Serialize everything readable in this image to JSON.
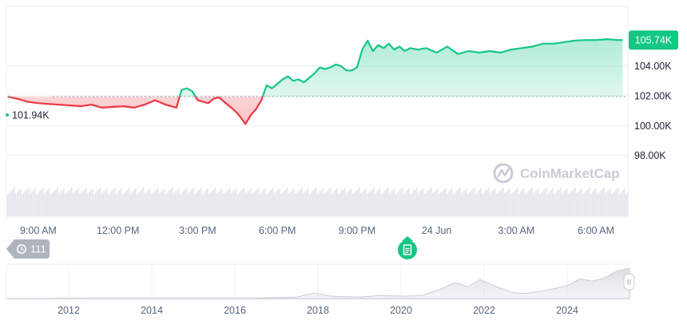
{
  "chart_data": [
    {
      "type": "line",
      "baseline": 101.94,
      "baseline_label": "101.94K",
      "current_label": "105.74K",
      "y_tick_labels": [
        "104.00K",
        "102.00K",
        "100.00K",
        "98.00K"
      ],
      "y_ticks": [
        104.0,
        102.0,
        100.0,
        98.0
      ],
      "ylim": [
        96.0,
        108.0
      ],
      "x_tick_labels": [
        "9:00 AM",
        "12:00 PM",
        "3:00 PM",
        "6:00 PM",
        "9:00 PM",
        "24 Jun",
        "3:00 AM",
        "6:00 AM"
      ],
      "x_ticks": [
        9,
        12,
        15,
        18,
        21,
        24,
        27,
        30
      ],
      "xlim": [
        7.8,
        31.2
      ],
      "colors": {
        "up": "#16c784",
        "down": "#ea3943",
        "badge": "#16c784"
      },
      "watermark": "CoinMarketCap",
      "series": [
        {
          "x": [
            7.85,
            8.2,
            8.6,
            9.0,
            9.4,
            9.8,
            10.2,
            10.6,
            11.0,
            11.4,
            11.8,
            12.2,
            12.6,
            13.0,
            13.4,
            13.8,
            14.2,
            14.4,
            14.6,
            14.8,
            15.0,
            15.2,
            15.4,
            15.6,
            15.8,
            16.0,
            16.2,
            16.4,
            16.6,
            16.8,
            17.0,
            17.2,
            17.4,
            17.6,
            17.8,
            18.0,
            18.2,
            18.4,
            18.6,
            18.8,
            19.0,
            19.2,
            19.4,
            19.6,
            19.8,
            20.0,
            20.2,
            20.4,
            20.6,
            20.8,
            21.0,
            21.2,
            21.4,
            21.6,
            21.8,
            22.0,
            22.2,
            22.4,
            22.6,
            22.8,
            23.0,
            23.3,
            23.6,
            24.0,
            24.4,
            24.8,
            25.2,
            25.6,
            26.0,
            26.4,
            26.8,
            27.2,
            27.6,
            28.0,
            28.4,
            28.8,
            29.2,
            29.6,
            30.0,
            30.4,
            30.8,
            31.0
          ],
          "values": [
            101.94,
            101.8,
            101.6,
            101.5,
            101.45,
            101.4,
            101.35,
            101.3,
            101.4,
            101.2,
            101.25,
            101.3,
            101.2,
            101.4,
            101.7,
            101.4,
            101.2,
            102.4,
            102.5,
            102.3,
            101.7,
            101.6,
            101.5,
            101.8,
            101.9,
            101.6,
            101.3,
            101.0,
            100.6,
            100.1,
            100.7,
            101.1,
            101.7,
            102.7,
            102.5,
            102.8,
            103.1,
            103.3,
            103.0,
            103.1,
            102.9,
            103.2,
            103.5,
            103.9,
            103.8,
            103.9,
            104.1,
            104.0,
            103.7,
            103.7,
            103.9,
            105.1,
            105.7,
            105.0,
            105.4,
            105.2,
            105.5,
            105.1,
            105.3,
            105.0,
            105.2,
            105.1,
            105.2,
            104.9,
            105.3,
            104.8,
            105.0,
            104.9,
            105.0,
            104.9,
            105.1,
            105.2,
            105.3,
            105.5,
            105.5,
            105.6,
            105.7,
            105.74,
            105.74,
            105.8,
            105.74,
            105.74
          ]
        }
      ]
    },
    {
      "type": "area",
      "x_tick_labels": [
        "2012",
        "2014",
        "2016",
        "2018",
        "2020",
        "2022",
        "2024"
      ],
      "x_ticks": [
        2012,
        2014,
        2016,
        2018,
        2020,
        2022,
        2024
      ],
      "xlim": [
        2010.5,
        2025.5
      ],
      "ylim": [
        0,
        110
      ],
      "series": [
        {
          "x": [
            2010.5,
            2013,
            2015,
            2016.5,
            2017.5,
            2017.9,
            2018.3,
            2019.0,
            2019.5,
            2020.0,
            2020.5,
            2021.0,
            2021.3,
            2021.6,
            2021.9,
            2022.3,
            2022.7,
            2023.0,
            2023.5,
            2024.0,
            2024.3,
            2024.6,
            2024.9,
            2025.2,
            2025.5
          ],
          "values": [
            0,
            1,
            1,
            1,
            5,
            19,
            8,
            5,
            10,
            8,
            10,
            35,
            55,
            40,
            65,
            40,
            20,
            17,
            28,
            43,
            68,
            60,
            70,
            95,
            104
          ]
        }
      ]
    }
  ],
  "history_badge": {
    "icon": "history-icon",
    "count": "111"
  },
  "event_marker": {
    "icon": "document-icon"
  },
  "scroll_handle": {
    "icon": "drag-handle-icon",
    "glyph": "II"
  }
}
